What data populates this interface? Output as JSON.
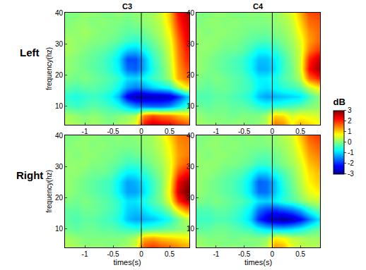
{
  "chart_data": [
    {
      "type": "heatmap",
      "title": "C3",
      "row_label": "Left",
      "y_label": "frequency(hz)",
      "x": [
        -1.3,
        -1.15,
        -1.0,
        -0.85,
        -0.7,
        -0.55,
        -0.4,
        -0.25,
        -0.1,
        0.05,
        0.2,
        0.35,
        0.5,
        0.65,
        0.8
      ],
      "y": [
        4,
        7,
        10,
        13,
        16,
        19,
        22,
        25,
        28,
        31,
        34,
        37,
        40
      ],
      "z": [
        [
          0.3,
          0.2,
          0.1,
          0.2,
          0.1,
          0.0,
          0.2,
          0.3,
          0.6,
          2.2,
          2.6,
          2.4,
          2.3,
          2.0,
          1.8
        ],
        [
          0.2,
          0.1,
          0.0,
          0.1,
          0.0,
          -0.1,
          0.0,
          0.1,
          0.3,
          1.5,
          1.8,
          1.6,
          1.5,
          1.2,
          1.0
        ],
        [
          -0.3,
          -0.4,
          -0.3,
          -0.2,
          -0.3,
          -0.4,
          -0.6,
          -1.0,
          -1.4,
          -1.5,
          -1.6,
          -1.6,
          -1.4,
          -0.9,
          -0.5
        ],
        [
          -0.5,
          -0.6,
          -0.5,
          -0.4,
          -0.5,
          -0.7,
          -1.2,
          -2.4,
          -2.8,
          -2.8,
          -2.7,
          -2.7,
          -2.6,
          -2.0,
          -1.2
        ],
        [
          -0.2,
          -0.3,
          -0.2,
          -0.2,
          -0.3,
          -0.4,
          -0.7,
          -1.3,
          -1.5,
          -1.3,
          -1.0,
          -0.8,
          -0.6,
          0.2,
          0.8
        ],
        [
          0.0,
          -0.1,
          0.0,
          -0.1,
          -0.2,
          -0.3,
          -0.5,
          -0.9,
          -1.0,
          -0.7,
          -0.4,
          -0.2,
          0.2,
          1.2,
          1.6
        ],
        [
          0.1,
          0.0,
          -0.1,
          -0.2,
          -0.3,
          -0.5,
          -0.8,
          -1.6,
          -1.7,
          -1.2,
          -0.6,
          -0.2,
          0.3,
          1.3,
          1.8
        ],
        [
          0.1,
          0.0,
          -0.1,
          -0.2,
          -0.3,
          -0.5,
          -0.9,
          -1.8,
          -1.8,
          -1.2,
          -0.5,
          -0.1,
          0.4,
          1.4,
          2.0
        ],
        [
          0.2,
          0.1,
          0.0,
          -0.1,
          -0.2,
          -0.3,
          -0.6,
          -1.0,
          -1.1,
          -0.7,
          -0.3,
          0.0,
          0.5,
          1.5,
          2.1
        ],
        [
          0.2,
          0.1,
          0.1,
          0.0,
          0.0,
          -0.1,
          -0.2,
          -0.4,
          -0.5,
          -0.3,
          -0.1,
          0.2,
          0.6,
          1.6,
          2.3
        ],
        [
          0.1,
          0.1,
          0.2,
          0.1,
          0.0,
          0.0,
          -0.1,
          -0.2,
          -0.2,
          -0.1,
          0.1,
          0.3,
          0.8,
          1.8,
          2.4
        ],
        [
          0.0,
          0.1,
          0.1,
          0.0,
          0.1,
          0.0,
          0.0,
          -0.1,
          0.0,
          0.1,
          0.2,
          0.4,
          1.0,
          2.0,
          2.5
        ],
        [
          0.0,
          0.0,
          0.1,
          0.1,
          0.0,
          0.0,
          0.1,
          0.0,
          0.1,
          0.1,
          0.2,
          0.5,
          1.1,
          2.2,
          2.6
        ]
      ],
      "xlim": [
        -1.35,
        0.85
      ],
      "xticks": [
        -1,
        -0.5,
        0,
        0.5
      ],
      "ylim": [
        4,
        40
      ],
      "yticks": [
        10,
        20,
        30,
        40
      ],
      "zlim": [
        -3,
        3
      ],
      "vline": 0
    },
    {
      "type": "heatmap",
      "title": "C4",
      "x": [
        -1.3,
        -1.15,
        -1.0,
        -0.85,
        -0.7,
        -0.55,
        -0.4,
        -0.25,
        -0.1,
        0.05,
        0.2,
        0.35,
        0.5,
        0.65,
        0.8
      ],
      "y": [
        4,
        7,
        10,
        13,
        16,
        19,
        22,
        25,
        28,
        31,
        34,
        37,
        40
      ],
      "z": [
        [
          0.2,
          0.1,
          0.1,
          0.0,
          0.1,
          0.1,
          0.0,
          0.1,
          0.3,
          1.6,
          1.4,
          0.8,
          1.2,
          1.0,
          0.8
        ],
        [
          0.1,
          0.0,
          0.0,
          0.0,
          -0.1,
          0.0,
          0.0,
          0.0,
          0.2,
          1.0,
          0.9,
          0.5,
          0.7,
          0.6,
          0.5
        ],
        [
          -0.1,
          -0.2,
          -0.1,
          -0.1,
          -0.2,
          -0.2,
          -0.3,
          -0.5,
          -0.6,
          -0.5,
          -0.4,
          -0.3,
          -0.2,
          0.0,
          0.1
        ],
        [
          -0.3,
          -0.3,
          -0.2,
          -0.2,
          -0.3,
          -0.4,
          -0.6,
          -1.1,
          -1.3,
          -1.2,
          -1.1,
          -1.0,
          -0.9,
          -0.4,
          0.0
        ],
        [
          -0.1,
          -0.2,
          -0.1,
          -0.1,
          -0.2,
          -0.3,
          -0.4,
          -0.8,
          -0.9,
          -0.7,
          -0.5,
          -0.4,
          -0.2,
          0.4,
          0.8
        ],
        [
          0.0,
          -0.1,
          0.0,
          -0.1,
          -0.2,
          -0.3,
          -0.5,
          -0.8,
          -0.8,
          -0.6,
          -0.3,
          -0.1,
          0.3,
          1.6,
          2.0
        ],
        [
          0.1,
          0.0,
          -0.1,
          -0.2,
          -0.3,
          -0.4,
          -0.7,
          -1.2,
          -1.2,
          -0.9,
          -0.4,
          -0.1,
          0.5,
          2.2,
          2.7
        ],
        [
          0.1,
          0.0,
          -0.1,
          -0.2,
          -0.3,
          -0.4,
          -0.7,
          -1.1,
          -1.1,
          -0.8,
          -0.4,
          0.0,
          0.5,
          2.0,
          2.5
        ],
        [
          0.1,
          0.1,
          0.0,
          -0.1,
          -0.1,
          -0.2,
          -0.4,
          -0.7,
          -0.7,
          -0.5,
          -0.2,
          0.1,
          0.5,
          1.5,
          1.9
        ],
        [
          0.1,
          0.1,
          0.1,
          0.0,
          0.0,
          -0.1,
          -0.2,
          -0.3,
          -0.3,
          -0.2,
          0.0,
          0.2,
          0.6,
          1.3,
          1.6
        ],
        [
          0.1,
          0.0,
          0.1,
          0.1,
          0.0,
          0.0,
          -0.1,
          -0.1,
          -0.1,
          0.0,
          0.1,
          0.3,
          0.8,
          1.4,
          1.6
        ],
        [
          0.0,
          0.1,
          0.1,
          0.0,
          0.1,
          0.0,
          0.0,
          0.0,
          0.0,
          0.1,
          0.2,
          0.4,
          1.0,
          1.6,
          1.7
        ],
        [
          0.0,
          0.0,
          0.1,
          0.1,
          0.0,
          0.0,
          0.1,
          0.0,
          0.1,
          0.1,
          0.3,
          0.6,
          1.2,
          1.8,
          1.9
        ]
      ],
      "xlim": [
        -1.35,
        0.85
      ],
      "xticks": [
        -1,
        -0.5,
        0,
        0.5
      ],
      "ylim": [
        4,
        40
      ],
      "yticks": [
        10,
        20,
        30,
        40
      ],
      "zlim": [
        -3,
        3
      ],
      "zticks": [
        -3,
        -2,
        -1,
        0,
        1,
        2,
        3
      ],
      "zlabel": "dB",
      "vline": 0
    },
    {
      "type": "heatmap",
      "row_label": "Right",
      "y_label": "frequency(hz)",
      "x_label": "times(s)",
      "x": [
        -1.3,
        -1.15,
        -1.0,
        -0.85,
        -0.7,
        -0.55,
        -0.4,
        -0.25,
        -0.1,
        0.05,
        0.2,
        0.35,
        0.5,
        0.65,
        0.8
      ],
      "y": [
        4,
        7,
        10,
        13,
        16,
        19,
        22,
        25,
        28,
        31,
        34,
        37,
        40
      ],
      "z": [
        [
          0.3,
          0.2,
          0.1,
          0.1,
          0.1,
          0.0,
          0.1,
          0.2,
          0.5,
          1.8,
          2.0,
          1.8,
          1.7,
          1.5,
          1.3
        ],
        [
          0.2,
          0.1,
          0.0,
          0.0,
          0.0,
          0.0,
          0.0,
          0.1,
          0.3,
          1.2,
          1.3,
          1.1,
          1.0,
          0.9,
          0.8
        ],
        [
          -0.1,
          -0.2,
          -0.1,
          -0.1,
          -0.2,
          -0.2,
          -0.3,
          -0.4,
          -0.5,
          -0.4,
          -0.3,
          -0.2,
          -0.1,
          0.0,
          0.1
        ],
        [
          -0.2,
          -0.3,
          -0.2,
          -0.2,
          -0.3,
          -0.4,
          -0.6,
          -1.1,
          -1.3,
          -1.2,
          -1.1,
          -0.9,
          -0.6,
          -0.1,
          0.3
        ],
        [
          -0.2,
          -0.2,
          -0.1,
          -0.1,
          -0.2,
          -0.3,
          -0.5,
          -1.0,
          -1.1,
          -0.9,
          -0.6,
          -0.4,
          0.0,
          0.8,
          1.4
        ],
        [
          0.0,
          -0.1,
          0.0,
          -0.1,
          -0.2,
          -0.3,
          -0.5,
          -0.9,
          -0.9,
          -0.6,
          -0.3,
          0.0,
          0.6,
          2.0,
          2.6
        ],
        [
          0.1,
          0.0,
          -0.1,
          -0.2,
          -0.3,
          -0.4,
          -0.8,
          -1.3,
          -1.3,
          -0.9,
          -0.4,
          0.0,
          0.8,
          2.5,
          3.0
        ],
        [
          0.1,
          0.0,
          -0.1,
          -0.2,
          -0.3,
          -0.4,
          -0.8,
          -1.3,
          -1.2,
          -0.8,
          -0.4,
          0.0,
          0.7,
          2.3,
          2.8
        ],
        [
          0.1,
          0.1,
          0.0,
          -0.1,
          -0.1,
          -0.2,
          -0.5,
          -0.8,
          -0.8,
          -0.5,
          -0.2,
          0.1,
          0.6,
          1.8,
          2.2
        ],
        [
          0.1,
          0.1,
          0.1,
          0.0,
          0.0,
          -0.1,
          -0.2,
          -0.4,
          -0.4,
          -0.2,
          0.0,
          0.2,
          0.6,
          1.4,
          1.7
        ],
        [
          0.1,
          0.0,
          0.1,
          0.1,
          0.0,
          0.0,
          -0.1,
          -0.2,
          -0.1,
          0.0,
          0.1,
          0.3,
          0.7,
          1.3,
          1.5
        ],
        [
          0.0,
          0.1,
          0.1,
          0.0,
          0.1,
          0.0,
          0.0,
          0.0,
          0.0,
          0.1,
          0.2,
          0.4,
          0.8,
          1.4,
          1.5
        ],
        [
          0.0,
          0.0,
          0.1,
          0.1,
          0.0,
          0.0,
          0.1,
          0.0,
          0.1,
          0.1,
          0.2,
          0.5,
          1.0,
          1.5,
          1.6
        ]
      ],
      "xlim": [
        -1.35,
        0.85
      ],
      "xticks": [
        -1,
        -0.5,
        0,
        0.5
      ],
      "ylim": [
        4,
        40
      ],
      "yticks": [
        10,
        20,
        30,
        40
      ],
      "zlim": [
        -3,
        3
      ],
      "vline": 0
    },
    {
      "type": "heatmap",
      "x_label": "times(s)",
      "x": [
        -1.3,
        -1.15,
        -1.0,
        -0.85,
        -0.7,
        -0.55,
        -0.4,
        -0.25,
        -0.1,
        0.05,
        0.2,
        0.35,
        0.5,
        0.65,
        0.8
      ],
      "y": [
        4,
        7,
        10,
        13,
        16,
        19,
        22,
        25,
        28,
        31,
        34,
        37,
        40
      ],
      "z": [
        [
          0.2,
          0.1,
          0.1,
          0.0,
          0.1,
          0.0,
          0.0,
          0.1,
          0.3,
          1.4,
          1.2,
          0.6,
          0.4,
          0.3,
          0.3
        ],
        [
          0.1,
          0.0,
          0.0,
          0.0,
          -0.1,
          0.0,
          0.0,
          0.0,
          0.1,
          0.8,
          0.7,
          0.4,
          0.3,
          0.2,
          0.2
        ],
        [
          -0.2,
          -0.2,
          -0.1,
          -0.1,
          -0.2,
          -0.3,
          -0.4,
          -0.7,
          -0.9,
          -1.0,
          -1.0,
          -0.9,
          -0.7,
          -0.4,
          -0.2
        ],
        [
          -0.4,
          -0.4,
          -0.3,
          -0.3,
          -0.4,
          -0.6,
          -1.0,
          -2.0,
          -2.5,
          -2.8,
          -2.9,
          -2.7,
          -2.3,
          -1.6,
          -1.0
        ],
        [
          -0.3,
          -0.3,
          -0.2,
          -0.2,
          -0.3,
          -0.5,
          -0.8,
          -1.6,
          -1.9,
          -2.0,
          -1.8,
          -1.6,
          -1.2,
          -0.6,
          -0.2
        ],
        [
          0.0,
          -0.1,
          0.0,
          -0.1,
          -0.2,
          -0.3,
          -0.5,
          -0.9,
          -1.0,
          -0.8,
          -0.5,
          -0.3,
          0.0,
          0.3,
          0.4
        ],
        [
          0.1,
          0.0,
          -0.1,
          -0.2,
          -0.3,
          -0.5,
          -0.9,
          -1.6,
          -1.6,
          -1.1,
          -0.6,
          -0.2,
          0.2,
          0.6,
          0.8
        ],
        [
          0.1,
          0.0,
          -0.1,
          -0.2,
          -0.3,
          -0.5,
          -0.9,
          -1.7,
          -1.6,
          -1.1,
          -0.5,
          -0.1,
          0.3,
          0.8,
          1.0
        ],
        [
          0.1,
          0.1,
          0.0,
          -0.1,
          -0.2,
          -0.3,
          -0.6,
          -1.0,
          -1.0,
          -0.6,
          -0.3,
          0.0,
          0.4,
          0.9,
          1.1
        ],
        [
          0.1,
          0.1,
          0.1,
          0.0,
          0.0,
          -0.1,
          -0.2,
          -0.4,
          -0.4,
          -0.2,
          0.0,
          0.2,
          0.5,
          1.1,
          1.3
        ],
        [
          0.1,
          0.0,
          0.1,
          0.1,
          0.0,
          0.0,
          -0.1,
          -0.2,
          -0.2,
          -0.1,
          0.1,
          0.3,
          0.7,
          1.3,
          1.5
        ],
        [
          0.0,
          0.1,
          0.1,
          0.0,
          0.1,
          0.0,
          0.0,
          0.0,
          0.0,
          0.1,
          0.2,
          0.4,
          0.9,
          1.5,
          1.7
        ],
        [
          0.0,
          0.0,
          0.1,
          0.1,
          0.0,
          0.0,
          0.1,
          0.0,
          0.1,
          0.1,
          0.3,
          0.5,
          1.1,
          1.7,
          1.9
        ]
      ],
      "xlim": [
        -1.35,
        0.85
      ],
      "xticks": [
        -1,
        -0.5,
        0,
        0.5
      ],
      "ylim": [
        4,
        40
      ],
      "yticks": [
        10,
        20,
        30,
        40
      ],
      "zlim": [
        -3,
        3
      ],
      "vline": 0
    }
  ]
}
